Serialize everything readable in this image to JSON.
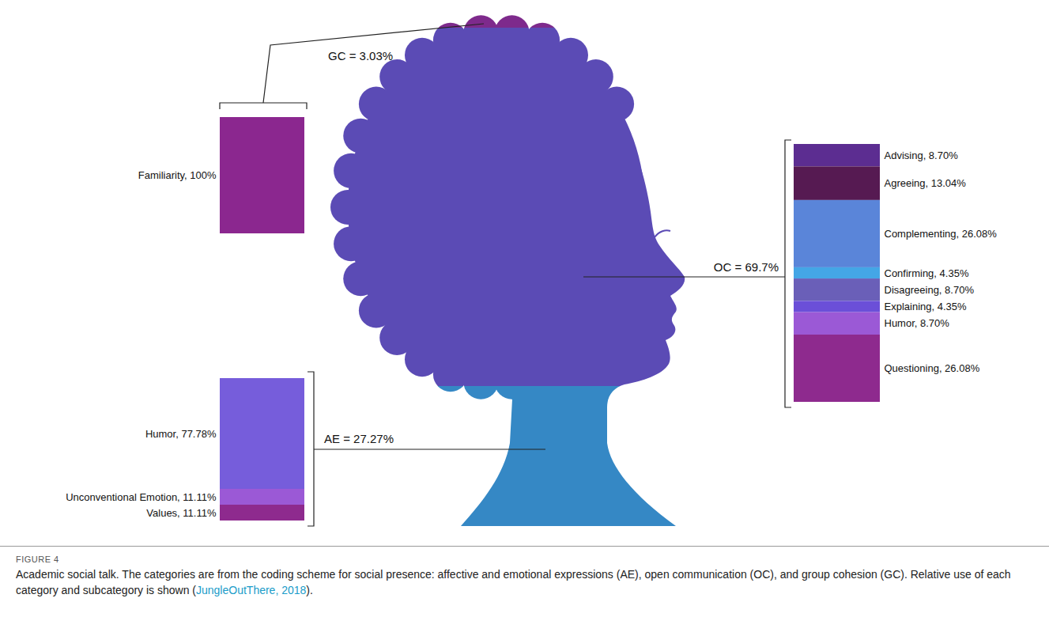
{
  "chart_data": [
    {
      "type": "bar",
      "stacked": true,
      "data_labels": true,
      "tick_labels": false,
      "title": "GC = 3.03%",
      "share": 3.03,
      "color": "#7e2a8c",
      "ylim": [
        0,
        100
      ],
      "series": [
        {
          "name": "Familiarity, 100%",
          "color": "#8b278f",
          "values": [
            100
          ]
        }
      ]
    },
    {
      "type": "bar",
      "stacked": true,
      "data_labels": true,
      "tick_labels": false,
      "title": "OC = 69.7%",
      "share": 69.7,
      "color": "#5b4bb5",
      "ylim": [
        0,
        100
      ],
      "series": [
        {
          "name": "Advising, 8.70%",
          "color": "#5c2d91",
          "values": [
            8.7
          ]
        },
        {
          "name": "Agreeing, 13.04%",
          "color": "#561a52",
          "values": [
            13.04
          ]
        },
        {
          "name": "Complementing, 26.08%",
          "color": "#5a85d9",
          "values": [
            26.08
          ]
        },
        {
          "name": "Confirming, 4.35%",
          "color": "#44a6e6",
          "values": [
            4.35
          ]
        },
        {
          "name": "Disagreeing, 8.70%",
          "color": "#6a5fb8",
          "values": [
            8.7
          ]
        },
        {
          "name": "Explaining, 4.35%",
          "color": "#6b4fd8",
          "values": [
            4.35
          ]
        },
        {
          "name": "Humor, 8.70%",
          "color": "#9b59d6",
          "values": [
            8.7
          ]
        },
        {
          "name": "Questioning, 26.08%",
          "color": "#8e2a8e",
          "values": [
            26.08
          ]
        }
      ]
    },
    {
      "type": "bar",
      "stacked": true,
      "data_labels": true,
      "tick_labels": false,
      "title": "AE = 27.27%",
      "share": 27.27,
      "color": "#3588c5",
      "ylim": [
        0,
        100
      ],
      "series": [
        {
          "name": "Humor, 77.78%",
          "color": "#765ddb",
          "values": [
            77.78
          ]
        },
        {
          "name": "Unconventional Emotion, 11.11%",
          "color": "#9b59d6",
          "values": [
            11.11
          ]
        },
        {
          "name": "Values, 11.11%",
          "color": "#8e2a8e",
          "values": [
            11.11
          ]
        }
      ]
    }
  ],
  "figure": {
    "label": "FIGURE 4",
    "caption": "Academic social talk. The categories are from the coding scheme for social presence: affective and emotional expressions (AE), open communication (OC), and group cohesion (GC). Relative use of each category and subcategory is shown (",
    "credit": "JungleOutThere, 2018",
    "caption_end": ")."
  }
}
